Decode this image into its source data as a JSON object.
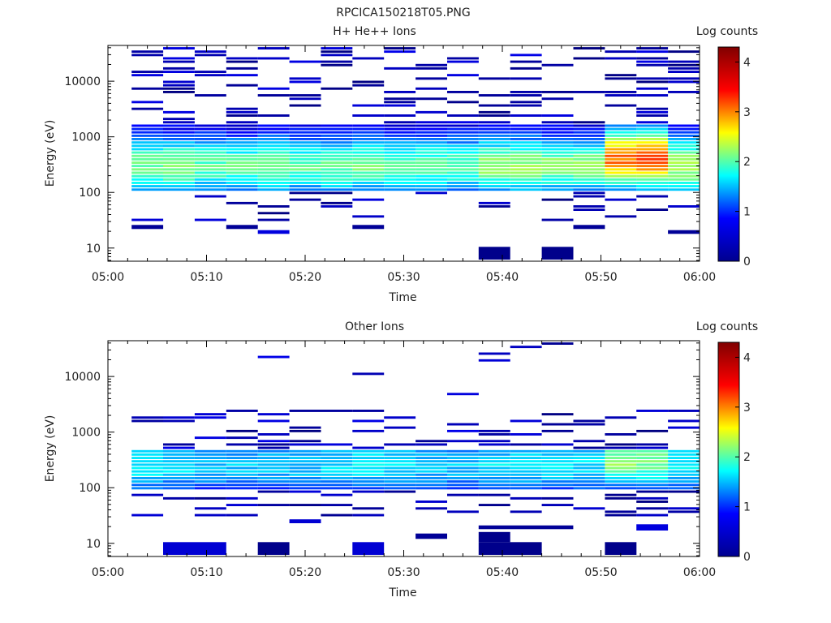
{
  "figure_title": "RPCICA150218T05.PNG",
  "colorbar": {
    "ticks": [
      "0",
      "1",
      "2",
      "3",
      "4"
    ],
    "range": [
      0,
      4.3
    ],
    "colormap": "jet",
    "stops": [
      "#00008f",
      "#0000ff",
      "#00ffff",
      "#ffff00",
      "#ff0000",
      "#800000"
    ]
  },
  "chart_data": [
    {
      "type": "heatmap",
      "title": "H+ He++ Ions",
      "xlabel": "Time",
      "ylabel": "Energy (eV)",
      "colorbar_label": "Log counts",
      "x_ticks": [
        "05:00",
        "05:10",
        "05:20",
        "05:30",
        "05:40",
        "05:50",
        "06:00"
      ],
      "x_range_minutes": [
        0,
        60
      ],
      "y_scale": "log",
      "y_ticks": [
        "10",
        "100",
        "1000",
        "10000"
      ],
      "y_range_eV": [
        5.8,
        44000
      ],
      "time_bins_minutes": [
        2.4,
        5.6,
        8.8,
        12.0,
        15.2,
        18.4,
        21.6,
        24.8,
        28.0,
        31.2,
        34.4,
        37.6,
        40.8,
        44.0,
        47.2,
        50.4,
        53.6,
        56.8,
        60.0
      ],
      "peak_energy_eV": [
        300,
        300,
        300,
        300,
        300,
        300,
        300,
        300,
        300,
        300,
        300,
        300,
        300,
        300,
        300,
        400,
        400,
        300
      ],
      "peak_log_counts": [
        2.1,
        2.2,
        2.0,
        2.0,
        2.1,
        2.0,
        2.1,
        2.1,
        2.0,
        2.0,
        2.0,
        2.3,
        2.3,
        2.2,
        2.2,
        3.3,
        3.4,
        2.4
      ],
      "band_low_eV": 100,
      "band_high_eV": 1700,
      "isolated_cells": [
        {
          "t0": 37.6,
          "t1": 40.8,
          "e0": 6.2,
          "e1": 10.5,
          "v": 0.05
        },
        {
          "t0": 44.0,
          "t1": 47.2,
          "e0": 6.2,
          "e1": 10.5,
          "v": 0.05
        },
        {
          "t0": 2.4,
          "t1": 5.6,
          "e0": 22,
          "e1": 26,
          "v": 0.1
        },
        {
          "t0": 12.0,
          "t1": 15.2,
          "e0": 22,
          "e1": 26,
          "v": 0.1
        },
        {
          "t0": 15.2,
          "t1": 18.4,
          "e0": 18,
          "e1": 21,
          "v": 0.4
        },
        {
          "t0": 24.8,
          "t1": 28.0,
          "e0": 22,
          "e1": 26,
          "v": 0.1
        },
        {
          "t0": 47.2,
          "t1": 50.4,
          "e0": 22,
          "e1": 26,
          "v": 0.1
        },
        {
          "t0": 56.8,
          "t1": 60.0,
          "e0": 18,
          "e1": 21,
          "v": 0.1
        }
      ]
    },
    {
      "type": "heatmap",
      "title": "Other Ions",
      "xlabel": "Time",
      "ylabel": "Energy (eV)",
      "colorbar_label": "Log counts",
      "x_ticks": [
        "05:00",
        "05:10",
        "05:20",
        "05:30",
        "05:40",
        "05:50",
        "06:00"
      ],
      "x_range_minutes": [
        0,
        60
      ],
      "y_scale": "log",
      "y_ticks": [
        "10",
        "100",
        "1000",
        "10000"
      ],
      "y_range_eV": [
        5.8,
        44000
      ],
      "time_bins_minutes": [
        2.4,
        5.6,
        8.8,
        12.0,
        15.2,
        18.4,
        21.6,
        24.8,
        28.0,
        31.2,
        34.4,
        37.6,
        40.8,
        44.0,
        47.2,
        50.4,
        53.6,
        56.8,
        60.0
      ],
      "peak_energy_eV": [
        250,
        250,
        250,
        250,
        250,
        250,
        250,
        250,
        250,
        250,
        250,
        250,
        250,
        250,
        250,
        300,
        300,
        250
      ],
      "peak_log_counts": [
        1.6,
        1.5,
        1.4,
        1.4,
        1.4,
        1.4,
        1.5,
        1.6,
        1.5,
        1.4,
        1.4,
        1.5,
        1.6,
        1.5,
        1.5,
        2.2,
        2.1,
        1.6
      ],
      "band_low_eV": 90,
      "band_high_eV": 500,
      "isolated_cells": [
        {
          "t0": 5.6,
          "t1": 12.0,
          "e0": 6.2,
          "e1": 10.5,
          "v": 0.35
        },
        {
          "t0": 15.2,
          "t1": 18.4,
          "e0": 6.2,
          "e1": 10.5,
          "v": 0.05
        },
        {
          "t0": 24.8,
          "t1": 28.0,
          "e0": 6.2,
          "e1": 10.5,
          "v": 0.35
        },
        {
          "t0": 37.6,
          "t1": 44.0,
          "e0": 6.2,
          "e1": 10.5,
          "v": 0.05
        },
        {
          "t0": 37.6,
          "t1": 40.8,
          "e0": 10.5,
          "e1": 16,
          "v": 0.05
        },
        {
          "t0": 50.4,
          "t1": 53.6,
          "e0": 6.2,
          "e1": 10.5,
          "v": 0.05
        },
        {
          "t0": 31.2,
          "t1": 34.4,
          "e0": 12,
          "e1": 15,
          "v": 0.1
        },
        {
          "t0": 53.6,
          "t1": 56.8,
          "e0": 17,
          "e1": 22,
          "v": 0.4
        },
        {
          "t0": 18.4,
          "t1": 21.6,
          "e0": 23,
          "e1": 27,
          "v": 0.35
        },
        {
          "t0": 37.6,
          "t1": 47.2,
          "e0": 18,
          "e1": 21,
          "v": 0.1
        }
      ]
    }
  ]
}
